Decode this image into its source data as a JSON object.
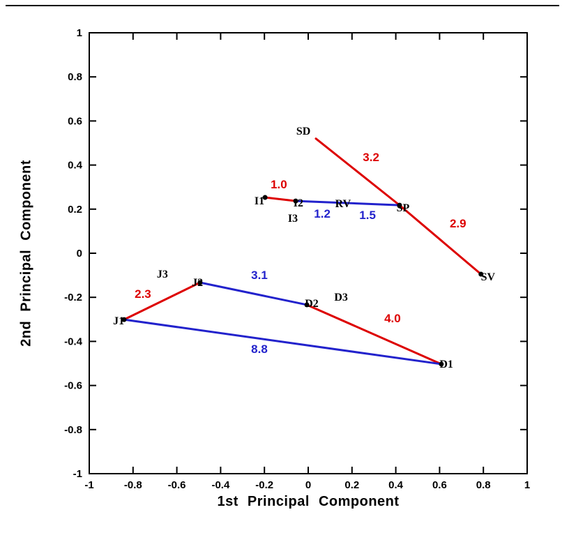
{
  "figure": {
    "background": "#ffffff"
  },
  "chart_data": {
    "type": "scatter",
    "title": "",
    "xlabel": "1st Principal Component",
    "ylabel": "2nd Principal Component",
    "xlim": [
      -1,
      1
    ],
    "ylim": [
      -1,
      1
    ],
    "grid": false,
    "legend": "none",
    "colors": {
      "red": "#dd0000",
      "blue": "#2222cc",
      "frame": "#000000",
      "text": "#000000"
    },
    "xticks": [
      {
        "v": -1,
        "label": "-1"
      },
      {
        "v": -0.8,
        "label": "-0.8"
      },
      {
        "v": -0.6,
        "label": "-0.6"
      },
      {
        "v": -0.4,
        "label": "-0.4"
      },
      {
        "v": -0.2,
        "label": "-0.2"
      },
      {
        "v": 0,
        "label": "0"
      },
      {
        "v": 0.2,
        "label": "0.2"
      },
      {
        "v": 0.4,
        "label": "0.4"
      },
      {
        "v": 0.6,
        "label": "0.6"
      },
      {
        "v": 0.8,
        "label": "0.8"
      },
      {
        "v": 1,
        "label": "1"
      }
    ],
    "yticks": [
      {
        "v": -1,
        "label": "-1"
      },
      {
        "v": -0.8,
        "label": "-0.8"
      },
      {
        "v": -0.6,
        "label": "-0.6"
      },
      {
        "v": -0.4,
        "label": "-0.4"
      },
      {
        "v": -0.2,
        "label": "-0.2"
      },
      {
        "v": 0,
        "label": "0"
      },
      {
        "v": 0.2,
        "label": "0.2"
      },
      {
        "v": 0.4,
        "label": "0.4"
      },
      {
        "v": 0.6,
        "label": "0.6"
      },
      {
        "v": 0.8,
        "label": "0.8"
      },
      {
        "v": 1,
        "label": "1"
      }
    ],
    "points": [
      {
        "label": "SD",
        "x": 0.035,
        "y": 0.52,
        "dot": false,
        "lx": -0.022,
        "ly": 0.538
      },
      {
        "label": "I1",
        "x": -0.197,
        "y": 0.253,
        "dot": true,
        "lx": -0.223,
        "ly": 0.222
      },
      {
        "label": "I2",
        "x": -0.057,
        "y": 0.237,
        "dot": true,
        "lx": -0.045,
        "ly": 0.212
      },
      {
        "label": "I3",
        "dot": false,
        "lx": -0.07,
        "ly": 0.142
      },
      {
        "label": "RV",
        "dot": false,
        "lx": 0.159,
        "ly": 0.209
      },
      {
        "label": "SP",
        "x": 0.417,
        "y": 0.218,
        "dot": true,
        "lx": 0.433,
        "ly": 0.19
      },
      {
        "label": "SV",
        "x": 0.789,
        "y": -0.095,
        "dot": true,
        "lx": 0.821,
        "ly": -0.123
      },
      {
        "label": "J3",
        "dot": false,
        "lx": -0.666,
        "ly": -0.111
      },
      {
        "label": "J2",
        "x": -0.494,
        "y": -0.133,
        "dot": true,
        "lx": -0.506,
        "ly": -0.149
      },
      {
        "label": "J1",
        "x": -0.841,
        "y": -0.301,
        "dot": true,
        "lx": -0.866,
        "ly": -0.323
      },
      {
        "label": "D2",
        "x": -0.006,
        "y": -0.234,
        "dot": true,
        "lx": 0.016,
        "ly": -0.244
      },
      {
        "label": "D3",
        "dot": false,
        "lx": 0.15,
        "ly": -0.215
      },
      {
        "label": "D1",
        "x": 0.608,
        "y": -0.503,
        "dot": true,
        "lx": 0.631,
        "ly": -0.519
      }
    ],
    "segments": [
      {
        "name": "I1-I2",
        "color": "red",
        "x1": -0.197,
        "y1": 0.253,
        "x2": -0.057,
        "y2": 0.237,
        "labels": [
          {
            "text": "1.0",
            "x": -0.134,
            "y": 0.294
          }
        ]
      },
      {
        "name": "SD-SP",
        "color": "red",
        "x1": 0.035,
        "y1": 0.52,
        "x2": 0.417,
        "y2": 0.218,
        "labels": [
          {
            "text": "3.2",
            "x": 0.287,
            "y": 0.418
          }
        ]
      },
      {
        "name": "SP-SV",
        "color": "red",
        "x1": 0.417,
        "y1": 0.218,
        "x2": 0.789,
        "y2": -0.095,
        "labels": [
          {
            "text": "2.9",
            "x": 0.684,
            "y": 0.117
          }
        ]
      },
      {
        "name": "J1-J2",
        "color": "red",
        "x1": -0.841,
        "y1": -0.301,
        "x2": -0.494,
        "y2": -0.133,
        "labels": [
          {
            "text": "2.3",
            "x": -0.755,
            "y": -0.203
          }
        ]
      },
      {
        "name": "D2-D1",
        "color": "red",
        "x1": -0.006,
        "y1": -0.234,
        "x2": 0.608,
        "y2": -0.503,
        "labels": [
          {
            "text": "4.0",
            "x": 0.385,
            "y": -0.313
          }
        ]
      },
      {
        "name": "I2-SP",
        "color": "blue",
        "x1": -0.057,
        "y1": 0.237,
        "x2": 0.417,
        "y2": 0.218,
        "labels": [
          {
            "text": "1.2",
            "x": 0.064,
            "y": 0.161
          },
          {
            "text": "1.5",
            "x": 0.271,
            "y": 0.155
          }
        ]
      },
      {
        "name": "J2-D2",
        "color": "blue",
        "x1": -0.494,
        "y1": -0.133,
        "x2": -0.006,
        "y2": -0.234,
        "labels": [
          {
            "text": "3.1",
            "x": -0.223,
            "y": -0.117
          }
        ]
      },
      {
        "name": "J1-D1",
        "color": "blue",
        "x1": -0.841,
        "y1": -0.301,
        "x2": 0.608,
        "y2": -0.503,
        "labels": [
          {
            "text": "8.8",
            "x": -0.223,
            "y": -0.453
          }
        ]
      }
    ]
  }
}
